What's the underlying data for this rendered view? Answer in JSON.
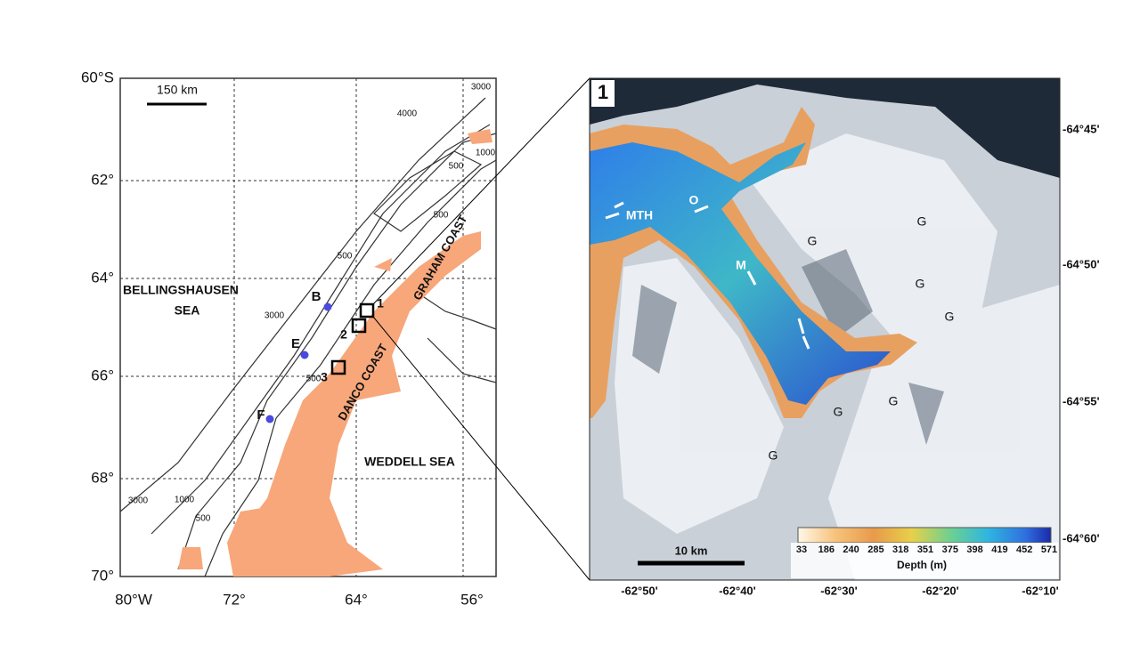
{
  "left_map": {
    "lat_labels": [
      "60°S",
      "62°",
      "64°",
      "66°",
      "68°",
      "70°"
    ],
    "lon_labels": [
      "80°W",
      "72°",
      "64°",
      "56°"
    ],
    "scale_label": "150 km",
    "sea_labels": [
      "BELLINGSHAUSEN",
      "SEA",
      "WEDDELL SEA"
    ],
    "coast_labels": [
      "DANCO COAST",
      "GRAHAM COAST"
    ],
    "station_labels": [
      "B",
      "E",
      "F"
    ],
    "box_labels": [
      "1",
      "2",
      "3"
    ],
    "contour_labels": [
      "3000",
      "4000",
      "500",
      "1000",
      "500",
      "500",
      "3000",
      "500",
      "3000",
      "1000",
      "500"
    ]
  },
  "right_map": {
    "panel_label": "1",
    "lat_labels": [
      "-64°45'",
      "-64°50'",
      "-64°55'",
      "-64°60'"
    ],
    "lon_labels": [
      "-62°50'",
      "-62°40'",
      "-62°30'",
      "-62°20'",
      "-62°10'"
    ],
    "feature_labels": [
      "MTH",
      "O",
      "M"
    ],
    "glacier_labels": [
      "G",
      "G",
      "G",
      "G",
      "G",
      "G",
      "G"
    ],
    "scale_label": "10 km",
    "colorbar": {
      "ticks": [
        33,
        186,
        240,
        285,
        318,
        351,
        375,
        398,
        419,
        452,
        571
      ],
      "title": "Depth (m)"
    }
  }
}
